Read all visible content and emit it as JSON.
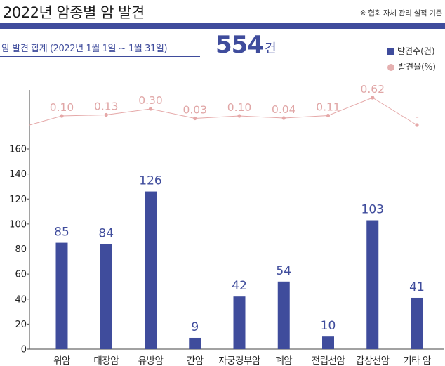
{
  "header": {
    "title": "2022년 암종별 암 발견",
    "note": "※ 협회 자체 관리 실적 기준"
  },
  "summary": {
    "label": "암 발견 합계 (2022년 1월 1일 ~ 1월 31일)",
    "value": "554",
    "unit": "건"
  },
  "colors": {
    "bar": "#3f4c9c",
    "rate_line": "#e5a8a8",
    "rate_text": "#e0a6a6"
  },
  "chart_data": {
    "type": "bar",
    "categories": [
      "위암",
      "대장암",
      "유방암",
      "간암",
      "자궁경부암",
      "폐암",
      "전립선암",
      "갑상선암",
      "기타 암"
    ],
    "series": [
      {
        "name": "발견수(건)",
        "type": "bar",
        "values": [
          85,
          84,
          126,
          9,
          42,
          54,
          10,
          103,
          41
        ]
      },
      {
        "name": "발견율(%)",
        "type": "line",
        "values": [
          0.1,
          0.13,
          0.3,
          0.03,
          0.1,
          0.04,
          0.11,
          0.62,
          null
        ],
        "labels": [
          "0.10",
          "0.13",
          "0.30",
          "0.03",
          "0.10",
          "0.04",
          "0.11",
          "0.62",
          "-"
        ]
      }
    ],
    "bar_labels": [
      "85",
      "84",
      "126",
      "9",
      "42",
      "54",
      "10",
      "103",
      "41"
    ],
    "yticks": [
      0,
      20,
      40,
      60,
      80,
      100,
      120,
      140,
      160
    ],
    "ylim": [
      0,
      160
    ],
    "legend": [
      "발견수(건)",
      "발견율(%)"
    ],
    "legend_position": "top-right"
  }
}
